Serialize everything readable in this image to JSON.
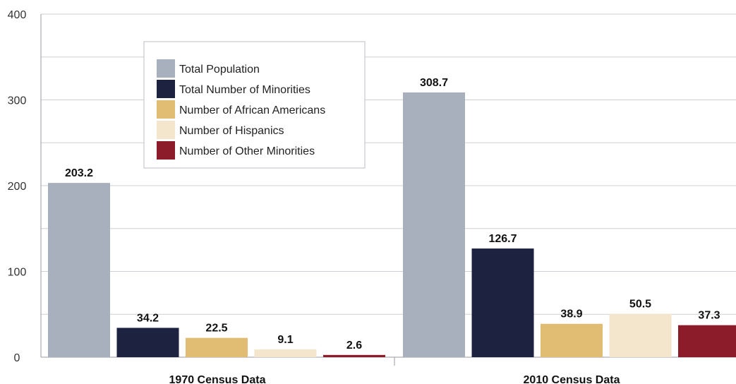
{
  "chart_data": {
    "type": "bar",
    "categories": [
      "1970 Census Data",
      "2010 Census Data"
    ],
    "series": [
      {
        "name": "Total Population",
        "values": [
          203.2,
          308.7
        ],
        "color": "#a9b0bd"
      },
      {
        "name": "Total Number of Minorities",
        "values": [
          34.2,
          126.7
        ],
        "color": "#1d2240"
      },
      {
        "name": "Number of African Americans",
        "values": [
          22.5,
          38.9
        ],
        "color": "#e0bd72"
      },
      {
        "name": "Number of Hispanics",
        "values": [
          9.1,
          50.5
        ],
        "color": "#f4e6cc"
      },
      {
        "name": "Number of Other Minorities",
        "values": [
          2.6,
          37.3
        ],
        "color": "#8c1c2a"
      }
    ],
    "data_labels": [
      [
        "203.2",
        "308.7"
      ],
      [
        "34.2",
        "126.7"
      ],
      [
        "22.5",
        "38.9"
      ],
      [
        "9.1",
        "50.5"
      ],
      [
        "2.6",
        "37.3"
      ]
    ],
    "ylim": [
      0,
      400
    ],
    "y_ticks": [
      0,
      100,
      200,
      300,
      400
    ],
    "grid": true,
    "legend_position": "top-left",
    "title": "",
    "xlabel": "",
    "ylabel": ""
  }
}
